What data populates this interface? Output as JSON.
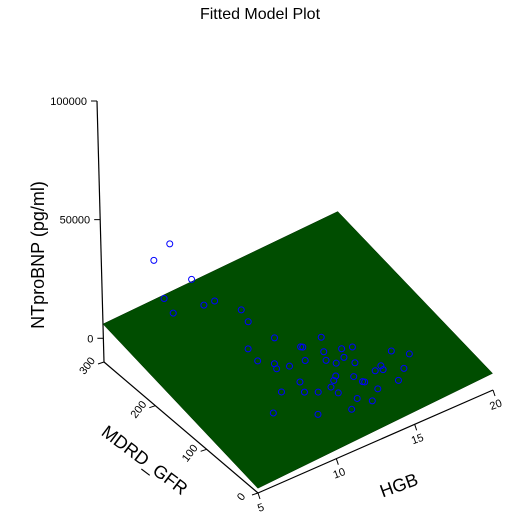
{
  "chart_data": {
    "type": "scatter3d",
    "title": "Fitted Model Plot",
    "xlabel": "HGB",
    "ylabel": "MDRD_GFR",
    "zlabel": "NTproBNP (pg/ml)",
    "xlim": [
      5,
      20
    ],
    "ylim": [
      0,
      300
    ],
    "zlim": [
      -10000,
      100000
    ],
    "x_ticks": [
      "5",
      "10",
      "15",
      "20"
    ],
    "y_ticks": [
      "0",
      "100",
      "200",
      "300"
    ],
    "z_ticks": [
      "0",
      "50000",
      "100000"
    ],
    "grid": false,
    "colors": {
      "points": "#0000ff",
      "plane": "#004d00",
      "axes": "#000000"
    },
    "fitted_plane": {
      "corners_z": [
        -8000,
        -3000,
        10000,
        6000
      ]
    },
    "series": [
      {
        "type": "scatter",
        "points": [
          {
            "hgb": 6.5,
            "gfr": 210,
            "ntprobnp": 52000
          },
          {
            "hgb": 7.5,
            "gfr": 200,
            "ntprobnp": 36000
          },
          {
            "hgb": 9.0,
            "gfr": 150,
            "ntprobnp": 28000
          },
          {
            "hgb": 8.0,
            "gfr": 290,
            "ntprobnp": 26000
          },
          {
            "hgb": 7.0,
            "gfr": 240,
            "ntprobnp": 22000
          },
          {
            "hgb": 9.5,
            "gfr": 240,
            "ntprobnp": 12000
          },
          {
            "hgb": 10.5,
            "gfr": 250,
            "ntprobnp": 9000
          },
          {
            "hgb": 8.5,
            "gfr": 270,
            "ntprobnp": 6000
          },
          {
            "hgb": 12.0,
            "gfr": 60,
            "ntprobnp": 8000
          },
          {
            "hgb": 11.0,
            "gfr": 120,
            "ntprobnp": 4000
          },
          {
            "hgb": 13.5,
            "gfr": 50,
            "ntprobnp": 3000
          },
          {
            "hgb": 12.5,
            "gfr": 80,
            "ntprobnp": 1000
          },
          {
            "hgb": 14.0,
            "gfr": 70,
            "ntprobnp": -2000
          },
          {
            "hgb": 15.0,
            "gfr": 60,
            "ntprobnp": 2000
          },
          {
            "hgb": 13.0,
            "gfr": 90,
            "ntprobnp": 5000
          },
          {
            "hgb": 11.5,
            "gfr": 40,
            "ntprobnp": 6000
          },
          {
            "hgb": 14.5,
            "gfr": 100,
            "ntprobnp": -1000
          },
          {
            "hgb": 16.0,
            "gfr": 50,
            "ntprobnp": 1500
          },
          {
            "hgb": 12.0,
            "gfr": 30,
            "ntprobnp": -500
          },
          {
            "hgb": 13.0,
            "gfr": 110,
            "ntprobnp": 2500
          },
          {
            "hgb": 10.0,
            "gfr": 60,
            "ntprobnp": 7000
          },
          {
            "hgb": 9.5,
            "gfr": 90,
            "ntprobnp": 3000
          },
          {
            "hgb": 14.0,
            "gfr": 40,
            "ntprobnp": 500
          },
          {
            "hgb": 15.5,
            "gfr": 80,
            "ntprobnp": -1500
          },
          {
            "hgb": 11.0,
            "gfr": 100,
            "ntprobnp": 1000
          },
          {
            "hgb": 12.5,
            "gfr": 140,
            "ntprobnp": 4000
          },
          {
            "hgb": 13.5,
            "gfr": 130,
            "ntprobnp": 1000
          },
          {
            "hgb": 10.5,
            "gfr": 50,
            "ntprobnp": -2000
          },
          {
            "hgb": 12.0,
            "gfr": 120,
            "ntprobnp": 3500
          },
          {
            "hgb": 14.5,
            "gfr": 60,
            "ntprobnp": 3000
          },
          {
            "hgb": 13.0,
            "gfr": 20,
            "ntprobnp": 2000
          },
          {
            "hgb": 11.5,
            "gfr": 80,
            "ntprobnp": -1000
          },
          {
            "hgb": 16.5,
            "gfr": 90,
            "ntprobnp": 0
          },
          {
            "hgb": 12.0,
            "gfr": 180,
            "ntprobnp": 2000
          },
          {
            "hgb": 10.0,
            "gfr": 170,
            "ntprobnp": 5000
          },
          {
            "hgb": 11.0,
            "gfr": 200,
            "ntprobnp": 8000
          },
          {
            "hgb": 13.0,
            "gfr": 160,
            "ntprobnp": -1000
          },
          {
            "hgb": 14.0,
            "gfr": 150,
            "ntprobnp": 2000
          },
          {
            "hgb": 15.0,
            "gfr": 120,
            "ntprobnp": 500
          },
          {
            "hgb": 9.0,
            "gfr": 120,
            "ntprobnp": 12000
          },
          {
            "hgb": 8.0,
            "gfr": 60,
            "ntprobnp": 4000
          },
          {
            "hgb": 12.5,
            "gfr": 40,
            "ntprobnp": 10000
          },
          {
            "hgb": 13.5,
            "gfr": 90,
            "ntprobnp": 6000
          },
          {
            "hgb": 11.0,
            "gfr": 150,
            "ntprobnp": -500
          },
          {
            "hgb": 14.0,
            "gfr": 110,
            "ntprobnp": 4500
          },
          {
            "hgb": 12.0,
            "gfr": 70,
            "ntprobnp": 1500
          },
          {
            "hgb": 10.5,
            "gfr": 130,
            "ntprobnp": 2500
          },
          {
            "hgb": 15.0,
            "gfr": 30,
            "ntprobnp": 3000
          },
          {
            "hgb": 13.0,
            "gfr": 50,
            "ntprobnp": -2500
          },
          {
            "hgb": 17.0,
            "gfr": 70,
            "ntprobnp": 1000
          }
        ]
      }
    ]
  }
}
